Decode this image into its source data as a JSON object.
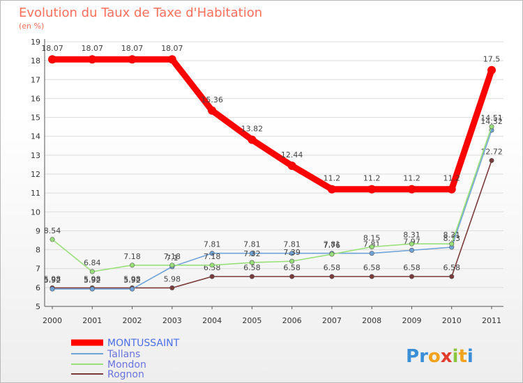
{
  "chart_data": {
    "type": "line",
    "title": "Evolution du Taux de Taxe d'Habitation",
    "subtitle": "(en %)",
    "x": [
      "2000",
      "2001",
      "2002",
      "2003",
      "2004",
      "2005",
      "2006",
      "2007",
      "2008",
      "2009",
      "2010",
      "2011"
    ],
    "y_ticks": [
      "5",
      "6",
      "7",
      "8",
      "9",
      "10",
      "11",
      "12",
      "13",
      "14",
      "15",
      "16",
      "17",
      "18",
      "19"
    ],
    "ylim": [
      5,
      19
    ],
    "grid": "horizontal",
    "legend_position": "bottom-left",
    "series": [
      {
        "name": "MONTUSSAINT",
        "color": "#ff0000",
        "values": [
          18.07,
          18.07,
          18.07,
          18.07,
          15.36,
          13.82,
          12.44,
          11.2,
          11.2,
          11.2,
          11.2,
          17.5
        ],
        "labels": [
          "18.07",
          "18.07",
          "18.07",
          "18.07",
          "15.36",
          "13.82",
          "12.44",
          "11.2",
          "11.2",
          "11.2",
          "11.2",
          "17.5"
        ]
      },
      {
        "name": "Tallans",
        "color": "#6fa3d8",
        "values": [
          5.92,
          5.92,
          5.92,
          7.1,
          7.81,
          7.81,
          7.81,
          7.81,
          7.81,
          7.97,
          8.13,
          14.32
        ],
        "labels": [
          "5.92",
          "5.92",
          "5.92",
          "7.1",
          "7.81",
          "7.81",
          "7.81",
          "7.81",
          "7.81",
          "7.97",
          "8.13",
          "14.32"
        ]
      },
      {
        "name": "Mondon",
        "color": "#99e07a",
        "values": [
          8.54,
          6.84,
          7.18,
          7.18,
          7.18,
          7.32,
          7.39,
          7.76,
          8.15,
          8.31,
          8.31,
          14.51
        ],
        "labels": [
          "8.54",
          "6.84",
          "7.18",
          "7.18",
          "7.18",
          "7.32",
          "7.39",
          "7.76",
          "8.15",
          "8.31",
          "8.31",
          "14.51"
        ]
      },
      {
        "name": "Rognon",
        "color": "#7a3b3b",
        "values": [
          5.98,
          5.98,
          5.98,
          5.98,
          6.58,
          6.58,
          6.58,
          6.58,
          6.58,
          6.58,
          6.58,
          12.72
        ],
        "labels": [
          "5.98",
          "5.98",
          "5.98",
          "5.98",
          "6.58",
          "6.58",
          "6.58",
          "6.58",
          "6.58",
          "6.58",
          "6.58",
          "12.72"
        ]
      }
    ]
  },
  "logo": {
    "text": "Proxiti",
    "letters": [
      {
        "ch": "P",
        "color": "#3b8fd6"
      },
      {
        "ch": "r",
        "color": "#3b8fd6"
      },
      {
        "ch": "o",
        "color": "#f2a31b"
      },
      {
        "ch": "x",
        "color": "#e23b2e"
      },
      {
        "ch": "i",
        "color": "#8cc63f"
      },
      {
        "ch": "t",
        "color": "#f2a31b"
      },
      {
        "ch": "i",
        "color": "#3b8fd6"
      }
    ]
  }
}
